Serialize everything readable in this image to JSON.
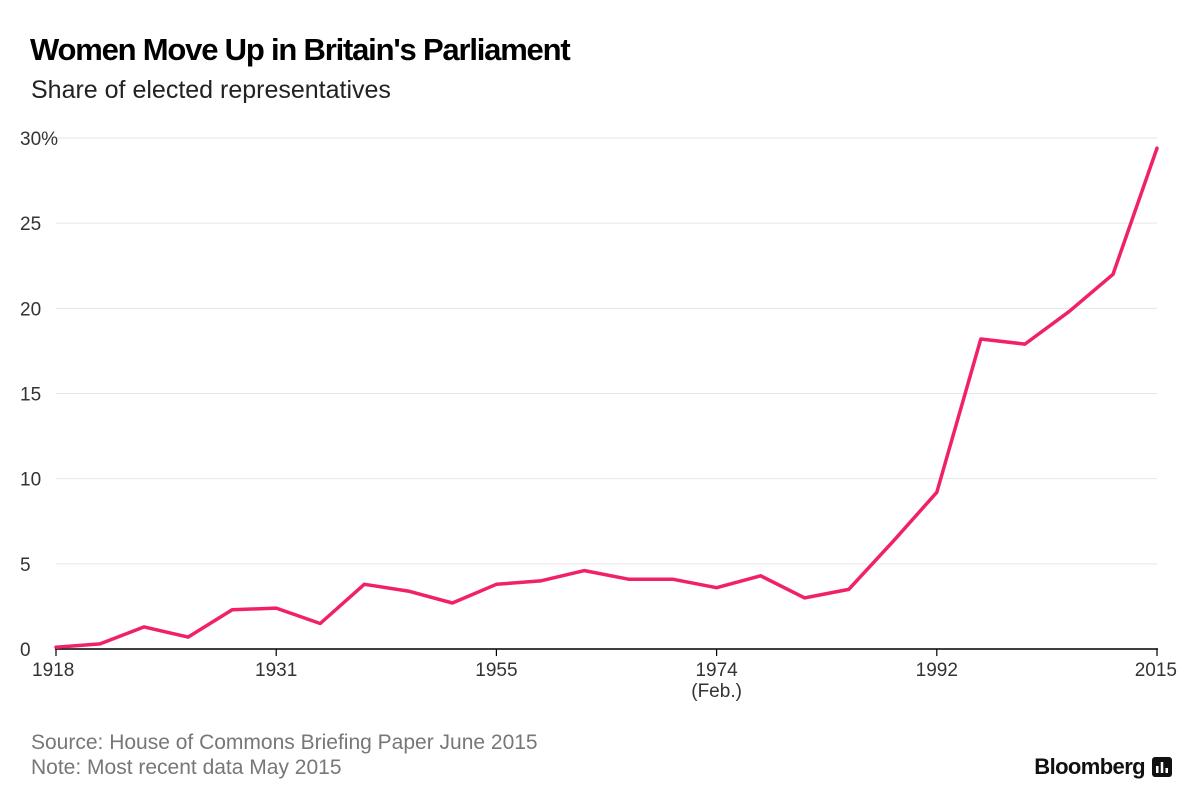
{
  "title": "Women Move Up in Britain's Parliament",
  "subtitle": "Share of elected representatives",
  "source": "Source: House of Commons Briefing Paper June 2015",
  "note": "Note: Most recent data May 2015",
  "brand": "Bloomberg",
  "brand_icon": "bloomberg-chart-icon",
  "colors": {
    "line": "#f0216a",
    "grid": "#e6e6e6",
    "axis": "#000000"
  },
  "chart_data": {
    "type": "line",
    "title": "Women Move Up in Britain's Parliament",
    "subtitle": "Share of elected representatives",
    "xlabel": "",
    "ylabel": "",
    "ylim": [
      0,
      30
    ],
    "grid": true,
    "x_ticks": [
      {
        "label": "1918",
        "index": 0
      },
      {
        "label": "1931",
        "index": 5
      },
      {
        "label": "1955",
        "index": 10
      },
      {
        "label": "1974",
        "sublabel": "(Feb.)",
        "index": 15
      },
      {
        "label": "1992",
        "index": 20
      },
      {
        "label": "2015",
        "index": 25
      }
    ],
    "y_ticks": [
      {
        "value": 0,
        "label": "0"
      },
      {
        "value": 5,
        "label": "5"
      },
      {
        "value": 10,
        "label": "10"
      },
      {
        "value": 15,
        "label": "15"
      },
      {
        "value": 20,
        "label": "20"
      },
      {
        "value": 25,
        "label": "25"
      },
      {
        "value": 30,
        "label": "30%"
      }
    ],
    "series": [
      {
        "x": [
          "1918",
          "1922",
          "1923",
          "1924",
          "1929",
          "1931",
          "1935",
          "1945",
          "1950",
          "1951",
          "1955",
          "1959",
          "1964",
          "1966",
          "1970",
          "1974 (Feb.)",
          "1974 (Oct.)",
          "1979",
          "1983",
          "1987",
          "1992",
          "1997",
          "2001",
          "2005",
          "2010",
          "2015"
        ],
        "values": [
          0.1,
          0.3,
          1.3,
          0.7,
          2.3,
          2.4,
          1.5,
          3.8,
          3.4,
          2.7,
          3.8,
          4.0,
          4.6,
          4.1,
          4.1,
          3.6,
          4.3,
          3.0,
          3.5,
          6.3,
          9.2,
          18.2,
          17.9,
          19.8,
          22.0,
          29.4
        ]
      }
    ]
  }
}
